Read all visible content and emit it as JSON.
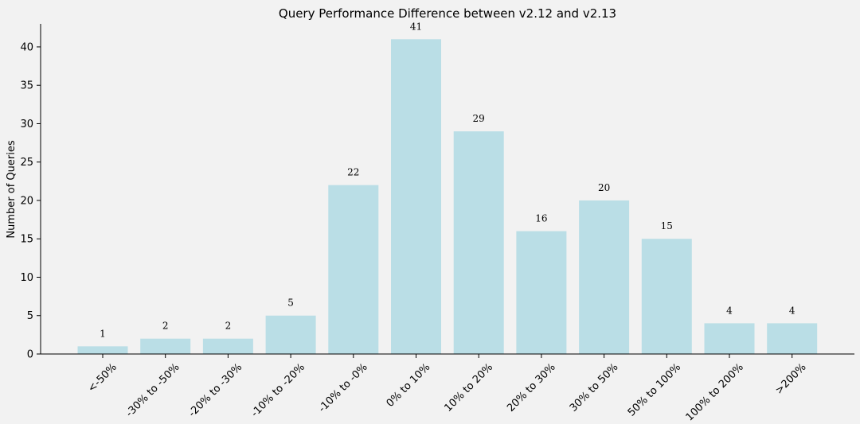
{
  "chart_data": {
    "type": "bar",
    "title": "Query Performance Difference between v2.12 and v2.13",
    "xlabel": "",
    "ylabel": "Number of Queries",
    "categories": [
      "<-50%",
      "-30% to -50%",
      "-20% to -30%",
      "-10% to -20%",
      "-10% to -0%",
      "0% to 10%",
      "10% to 20%",
      "20% to 30%",
      "30% to 50%",
      "50% to 100%",
      "100% to 200%",
      ">200%"
    ],
    "values": [
      1,
      2,
      2,
      5,
      22,
      41,
      29,
      16,
      20,
      15,
      4,
      4
    ],
    "data_labels": [
      "1",
      "2",
      "2",
      "5",
      "22",
      "41",
      "29",
      "16",
      "20",
      "15",
      "4",
      "4"
    ],
    "ylim": [
      0,
      43
    ],
    "yticks": [
      0,
      5,
      10,
      15,
      20,
      25,
      30,
      35,
      40
    ],
    "grid": false,
    "legend": "none",
    "colors": {
      "bar": "#badee6",
      "background": "#f2f2f2",
      "axis": "#000000"
    }
  }
}
